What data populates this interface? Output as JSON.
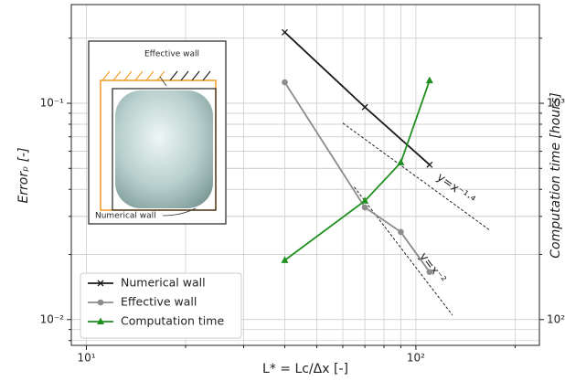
{
  "chart_data": {
    "type": "line",
    "xlabel": "L* = Lc/Δx [-]",
    "ylabel": "Errorₚ [-]",
    "y2label": "Computation time [hours]",
    "log_x": true,
    "log_y": true,
    "grid": true,
    "legend": "lower left",
    "xlim": [
      9,
      237
    ],
    "ylim": [
      0.0076,
      0.286
    ],
    "y2lim": [
      76,
      2860
    ],
    "xticks": [
      {
        "value": 10,
        "label": "10¹"
      },
      {
        "value": 100,
        "label": "10²"
      }
    ],
    "xminor": [
      20,
      30,
      40,
      50,
      60,
      70,
      80,
      90,
      200
    ],
    "yticks": [
      {
        "value": 0.01,
        "label": "10⁻²"
      },
      {
        "value": 0.1,
        "label": "10⁻¹"
      }
    ],
    "yminor": [
      0.008,
      0.009,
      0.02,
      0.03,
      0.04,
      0.05,
      0.06,
      0.07,
      0.08,
      0.09,
      0.2
    ],
    "y2ticks": [
      {
        "value": 100,
        "label": "10²"
      },
      {
        "value": 1000,
        "label": "10³"
      }
    ],
    "y2minor": [
      200,
      300,
      400,
      500,
      600,
      700,
      800,
      900,
      2000
    ],
    "series": [
      {
        "name": "Numerical wall",
        "color": "#1a1a1a",
        "marker": "x",
        "x": [
          40,
          70,
          110
        ],
        "values": [
          0.213,
          0.096,
          0.052
        ]
      },
      {
        "name": "Effective wall",
        "color": "#8c8c8c",
        "marker": "o",
        "x": [
          40,
          70,
          90,
          110
        ],
        "values": [
          0.125,
          0.033,
          0.0254,
          0.0166
        ]
      },
      {
        "name": "Computation time",
        "color": "#1f8f1f",
        "marker": "^",
        "axis": "y2",
        "x": [
          40,
          70,
          90,
          110
        ],
        "values": [
          188,
          354,
          532,
          1274
        ]
      }
    ],
    "guides": [
      {
        "label": "y=x⁻¹·⁴",
        "x": [
          60,
          167
        ],
        "y": [
          0.081,
          0.026
        ]
      },
      {
        "label": "y=x⁻²",
        "x": [
          65,
          129
        ],
        "y": [
          0.041,
          0.0105
        ]
      }
    ],
    "inset_labels": [
      "Effective wall",
      "Numerical wall"
    ]
  }
}
